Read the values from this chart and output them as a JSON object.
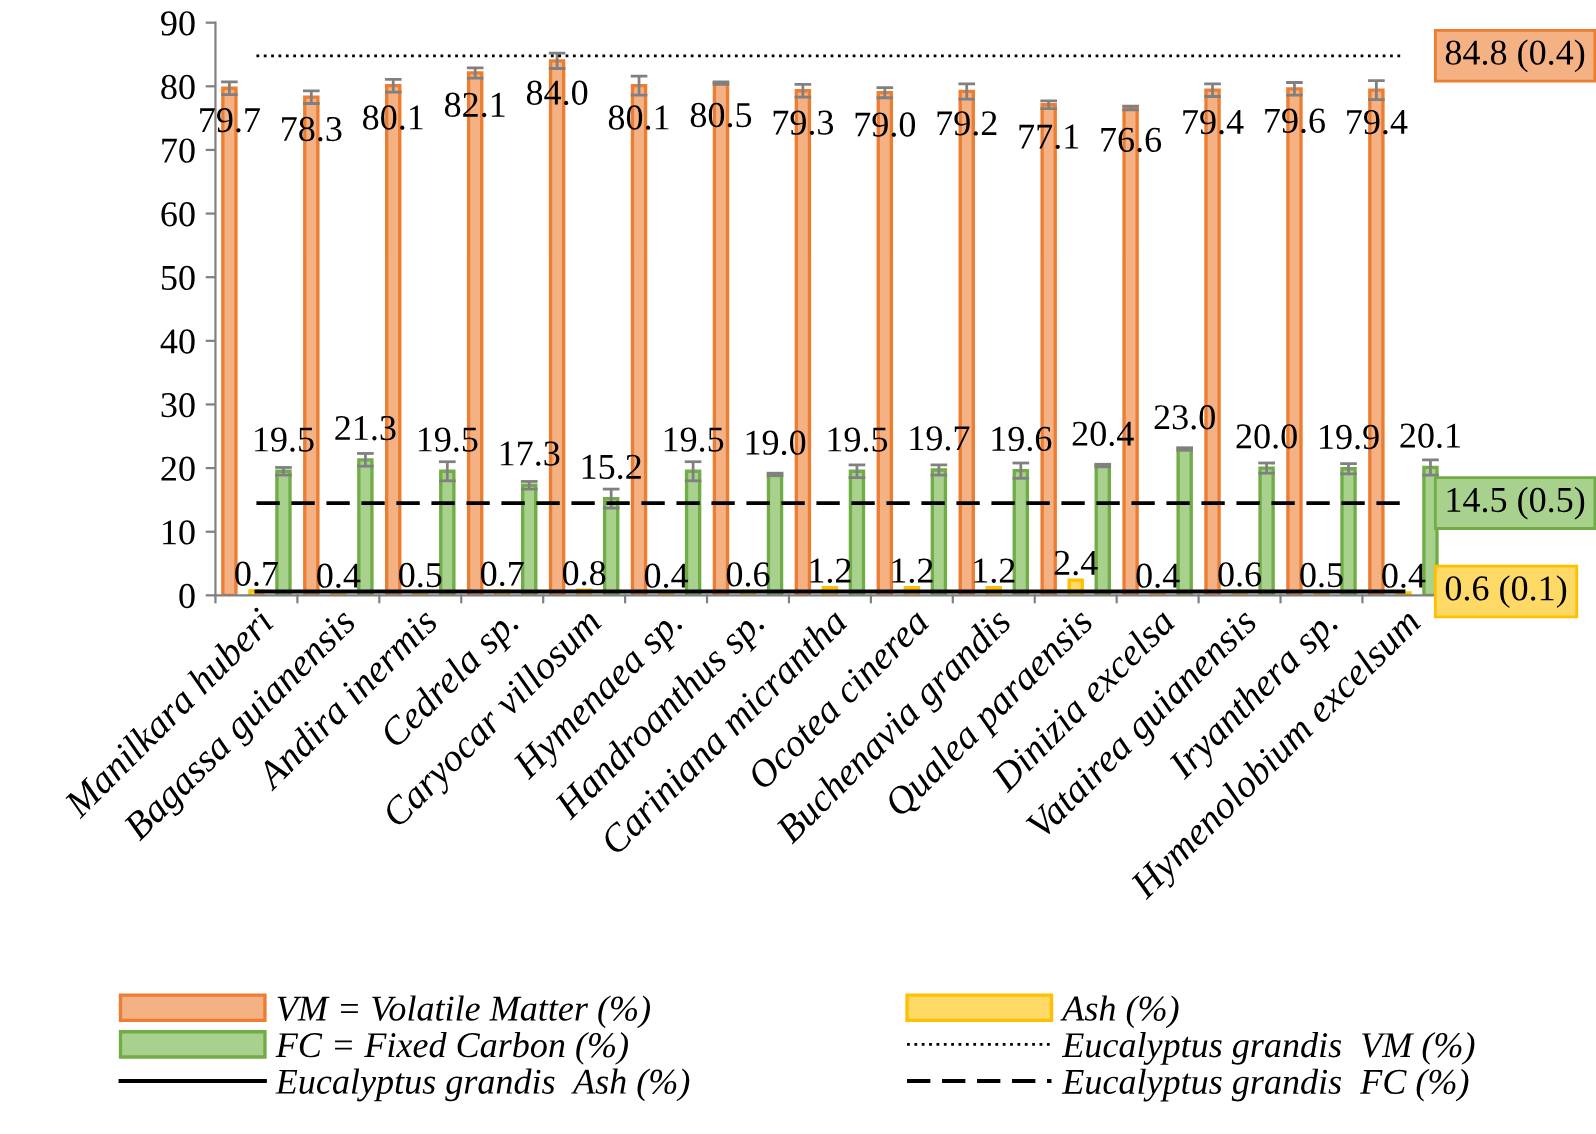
{
  "chart_data": {
    "type": "bar",
    "categories": [
      "Manilkara huberi",
      "Bagassa guianensis",
      "Andira inermis",
      "Cedrela sp.",
      "Caryocar villosum",
      "Hymenaea sp.",
      "Handroanthus sp.",
      "Cariniana micrantha",
      "Ocotea cinerea",
      "Buchenavia grandis",
      "Qualea paraensis",
      "Dinizia excelsa",
      "Vatairea guianensis",
      "Iryanthera sp.",
      "Hymenolobium excelsum"
    ],
    "series": [
      {
        "name": "VM = Volatile Matter (%)",
        "color": "#f4b183",
        "values": [
          79.7,
          78.3,
          80.1,
          82.1,
          84.0,
          80.1,
          80.5,
          79.3,
          79.0,
          79.2,
          77.1,
          76.6,
          79.4,
          79.6,
          79.4
        ],
        "value_labels": [
          "79.7",
          "78.3",
          "80.1",
          "82.1",
          "84.0",
          "80.1",
          "80.5",
          "79.3",
          "79.0",
          "79.2",
          "77.1",
          "76.6",
          "79.4",
          "79.6",
          "79.4"
        ],
        "errors": [
          1.0,
          1.0,
          1.0,
          0.8,
          1.2,
          1.5,
          0.2,
          1.0,
          0.8,
          1.2,
          0.6,
          0.3,
          1.0,
          1.0,
          1.5
        ]
      },
      {
        "name": "Ash (%)",
        "color": "#ffd966",
        "values": [
          0.7,
          0.4,
          0.5,
          0.7,
          0.8,
          0.4,
          0.6,
          1.2,
          1.2,
          1.2,
          2.4,
          0.4,
          0.6,
          0.5,
          0.4
        ],
        "value_labels": [
          "0.7",
          "0.4",
          "0.5",
          "0.7",
          "0.8",
          "0.4",
          "0.6",
          "1.2",
          "1.2",
          "1.2",
          "2.4",
          "0.4",
          "0.6",
          "0.5",
          "0.4"
        ]
      },
      {
        "name": "FC = Fixed Carbon (%)",
        "color": "#a9d18e",
        "values": [
          19.5,
          21.3,
          19.5,
          17.3,
          15.2,
          19.5,
          19.0,
          19.5,
          19.7,
          19.6,
          20.4,
          23.0,
          20.0,
          19.9,
          20.1
        ],
        "value_labels": [
          "19.5",
          "21.3",
          "19.5",
          "17.3",
          "15.2",
          "19.5",
          "19.0",
          "19.5",
          "19.7",
          "19.6",
          "20.4",
          "23.0",
          "20.0",
          "19.9",
          "20.1"
        ],
        "errors": [
          0.6,
          1.0,
          1.5,
          0.6,
          1.5,
          1.5,
          0.2,
          1.0,
          0.8,
          1.2,
          0.2,
          0.2,
          0.8,
          0.8,
          1.2
        ]
      },
      {
        "name": "Eucalyptus grandis  VM (%)",
        "type": "line",
        "color": "#000000",
        "line_style": "dotted",
        "values": [
          84.8,
          84.8,
          84.8,
          84.8,
          84.8,
          84.8,
          84.8,
          84.8,
          84.8,
          84.8,
          84.8,
          84.8,
          84.8,
          84.8,
          84.8
        ]
      },
      {
        "name": "Eucalyptus grandis  Ash (%)",
        "type": "line",
        "color": "#000000",
        "line_style": "solid",
        "values": [
          0.6,
          0.6,
          0.6,
          0.6,
          0.6,
          0.6,
          0.6,
          0.6,
          0.6,
          0.6,
          0.6,
          0.6,
          0.6,
          0.6,
          0.6
        ]
      },
      {
        "name": "Eucalyptus grandis  FC (%)",
        "type": "line",
        "color": "#000000",
        "line_style": "dashed",
        "values": [
          14.5,
          14.5,
          14.5,
          14.5,
          14.5,
          14.5,
          14.5,
          14.5,
          14.5,
          14.5,
          14.5,
          14.5,
          14.5,
          14.5,
          14.5
        ]
      }
    ],
    "annotations": [
      {
        "text": "84.8 (0.4)",
        "x": "Hymenolobium excelsum",
        "y": 84.8
      },
      {
        "text": "0.6 (0.1)",
        "x": "Hymenolobium excelsum",
        "y": 0.6
      },
      {
        "text": "14.5 (0.5)",
        "x": "Hymenolobium excelsum",
        "y": 14.5
      }
    ],
    "ylim": [
      0,
      90
    ],
    "yticks": [
      0,
      10,
      20,
      30,
      40,
      50,
      60,
      70,
      80,
      90
    ],
    "legend": "bottom"
  }
}
